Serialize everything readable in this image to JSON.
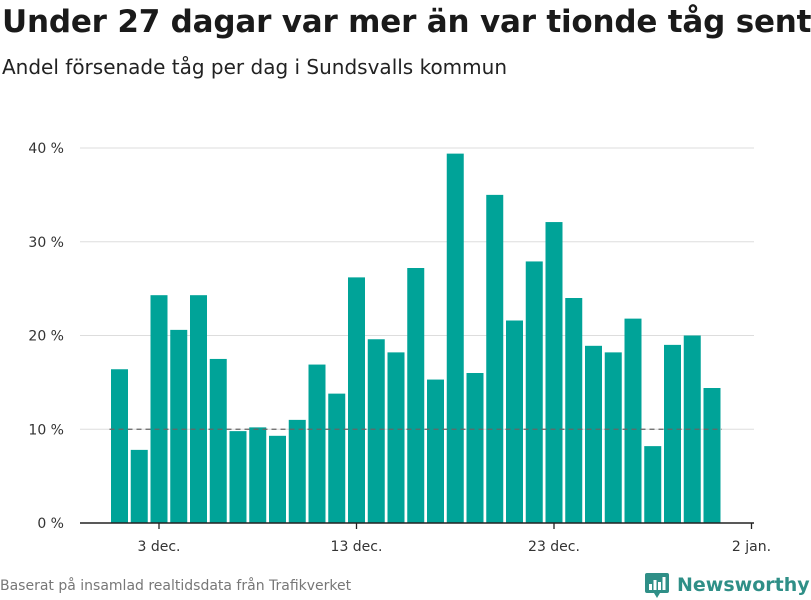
{
  "header": {
    "title": "Under 27 dagar var mer än var tionde tåg sent",
    "subtitle": "Andel försenade tåg per dag i Sundsvalls kommun"
  },
  "footer": {
    "source": "Baserat på insamlad realtidsdata från Trafikverket",
    "brand": "Newsworthy"
  },
  "colors": {
    "bar": "#00a398",
    "grid": "#dddddd",
    "reference": "#666666",
    "brand": "#2f8f87"
  },
  "chart_data": {
    "type": "bar",
    "title": "Under 27 dagar var mer än var tionde tåg sent",
    "subtitle": "Andel försenade tåg per dag i Sundsvalls kommun",
    "xlabel": "",
    "ylabel": "",
    "x_unit": "day",
    "x": [
      "2021-12-01",
      "2021-12-02",
      "2021-12-03",
      "2021-12-04",
      "2021-12-05",
      "2021-12-06",
      "2021-12-07",
      "2021-12-08",
      "2021-12-09",
      "2021-12-10",
      "2021-12-11",
      "2021-12-12",
      "2021-12-13",
      "2021-12-14",
      "2021-12-15",
      "2021-12-16",
      "2021-12-17",
      "2021-12-18",
      "2021-12-19",
      "2021-12-20",
      "2021-12-21",
      "2021-12-22",
      "2021-12-23",
      "2021-12-24",
      "2021-12-25",
      "2021-12-26",
      "2021-12-27",
      "2021-12-28",
      "2021-12-29",
      "2021-12-30",
      "2021-12-31"
    ],
    "values": [
      16.4,
      7.8,
      24.3,
      20.6,
      24.3,
      17.5,
      9.8,
      10.2,
      9.3,
      11.0,
      16.9,
      13.8,
      26.2,
      19.6,
      18.2,
      27.2,
      15.3,
      39.4,
      16.0,
      35.0,
      21.6,
      27.9,
      32.1,
      24.0,
      18.9,
      18.2,
      21.8,
      8.2,
      19.0,
      20.0,
      14.4
    ],
    "ylim": [
      0,
      40
    ],
    "yticks": [
      0,
      10,
      20,
      30,
      40
    ],
    "ytick_labels": [
      "0 %",
      "10 %",
      "20 %",
      "30 %",
      "40 %"
    ],
    "xticks": [
      "2021-12-03",
      "2021-12-13",
      "2021-12-23",
      "2022-01-02"
    ],
    "xtick_labels": [
      "3 dec.",
      "13 dec.",
      "23 dec.",
      "2 jan."
    ],
    "reference_line": {
      "value": 10,
      "style": "dashed"
    },
    "grid": true,
    "legend": "none"
  }
}
